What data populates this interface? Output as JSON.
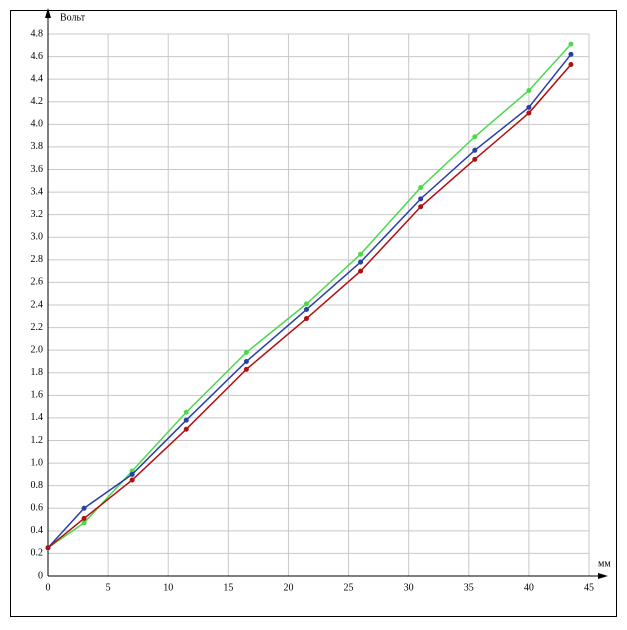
{
  "chart_data": {
    "type": "line",
    "y_label": "Вольт",
    "x_label": "мм",
    "x": [
      0,
      3,
      7,
      11.5,
      16.5,
      21.5,
      26,
      31,
      35.5,
      40,
      43.5
    ],
    "series": [
      {
        "color": "#4cd94c",
        "values": [
          0.25,
          0.47,
          0.93,
          1.45,
          1.98,
          2.41,
          2.85,
          3.44,
          3.89,
          4.3,
          4.71
        ]
      },
      {
        "color": "#2a3fa5",
        "values": [
          0.25,
          0.6,
          0.9,
          1.38,
          1.9,
          2.36,
          2.78,
          3.34,
          3.77,
          4.15,
          4.62
        ]
      },
      {
        "color": "#b01010",
        "values": [
          0.25,
          0.51,
          0.85,
          1.3,
          1.83,
          2.28,
          2.7,
          3.27,
          3.69,
          4.1,
          4.53
        ]
      }
    ],
    "xlim": [
      0,
      45
    ],
    "xticks": [
      0,
      5,
      10,
      15,
      20,
      25,
      30,
      35,
      40,
      45
    ],
    "ylim": [
      0,
      4.8
    ],
    "yticks": [
      0,
      0.2,
      0.4,
      0.6,
      0.8,
      {
        "value": 1,
        "label": "1.0"
      },
      1.2,
      1.4,
      1.6,
      1.8,
      {
        "value": 2,
        "label": "2.0"
      },
      2.2,
      2.4,
      2.6,
      2.8,
      {
        "value": 3,
        "label": "3.0"
      },
      3.2,
      3.4,
      3.6,
      3.8,
      {
        "value": 4,
        "label": "4.0"
      },
      4.2,
      4.4,
      4.6,
      4.8
    ],
    "grid": true
  }
}
